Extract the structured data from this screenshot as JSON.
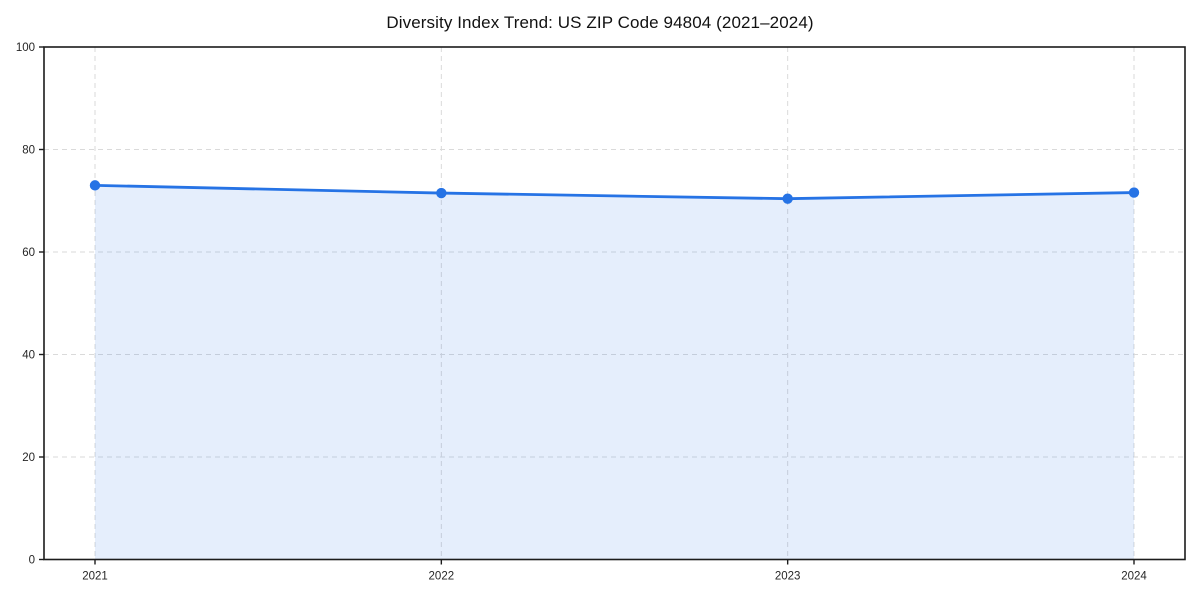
{
  "chart_data": {
    "type": "area",
    "title": "Diversity Index Trend: US ZIP Code 94804 (2021–2024)",
    "x": [
      2021,
      2022,
      2023,
      2024
    ],
    "x_tick_labels": [
      "2021",
      "2022",
      "2023",
      "2024"
    ],
    "series": [
      {
        "name": "Diversity Index",
        "values": [
          73.0,
          71.5,
          70.4,
          71.6
        ]
      }
    ],
    "xlabel": "",
    "ylabel": "",
    "ylim": [
      0,
      100
    ],
    "yticks": [
      0,
      20,
      40,
      60,
      80,
      100
    ],
    "grid": true,
    "grid_style": "dashed",
    "legend": false,
    "marker": "circle",
    "colors": {
      "line": "#2673e5",
      "marker": "#2673e5",
      "fill": "rgba(38, 115, 229, 0.12)",
      "grid": "#dadada",
      "spine": "#1c1c1c",
      "tick_text": "#262626",
      "title_text": "#111111",
      "background": "#ffffff"
    }
  }
}
